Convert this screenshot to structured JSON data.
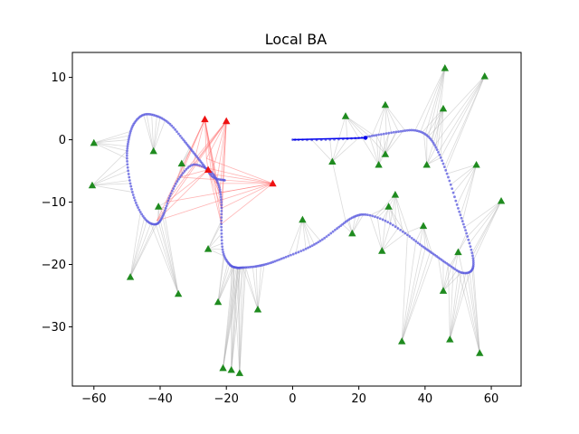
{
  "chart_data": {
    "type": "scatter",
    "title": "Local BA",
    "xlabel": "",
    "ylabel": "",
    "xlim": [
      -66.5,
      69
    ],
    "ylim": [
      -39.5,
      14
    ],
    "xticks": [
      -60,
      -40,
      -20,
      0,
      20,
      40,
      60
    ],
    "yticks": [
      10,
      0,
      -10,
      -20,
      -30
    ],
    "xtick_labels": [
      "−60",
      "−40",
      "−20",
      "0",
      "20",
      "40",
      "60"
    ],
    "ytick_labels": [
      "10",
      "0",
      "−10",
      "−20",
      "−30"
    ],
    "grid": false,
    "colors": {
      "trajectory": "#5555dd",
      "trajectory_end": "#0000ee",
      "landmark_fixed": "#1f8b1f",
      "landmark_local": "#ee1111",
      "observation_fixed": "#b0b0b0",
      "observation_local": "#ff6b6b"
    },
    "trajectory": [
      [
        0,
        0
      ],
      [
        10,
        0
      ],
      [
        20,
        0.3
      ],
      [
        26,
        0.8
      ],
      [
        32,
        1.3
      ],
      [
        37,
        1.5
      ],
      [
        41,
        0.5
      ],
      [
        44,
        -2
      ],
      [
        47,
        -6
      ],
      [
        50,
        -11
      ],
      [
        52.5,
        -15
      ],
      [
        54.5,
        -19
      ],
      [
        54,
        -21
      ],
      [
        51,
        -21.3
      ],
      [
        47,
        -20
      ],
      [
        43,
        -18.5
      ],
      [
        39,
        -17
      ],
      [
        34,
        -15
      ],
      [
        28,
        -13
      ],
      [
        22,
        -12
      ],
      [
        18,
        -12.5
      ],
      [
        14,
        -14
      ],
      [
        9,
        -16
      ],
      [
        4,
        -17.5
      ],
      [
        -2,
        -18.8
      ],
      [
        -7,
        -19.8
      ],
      [
        -11,
        -20.3
      ],
      [
        -15,
        -20.5
      ],
      [
        -17,
        -20.5
      ],
      [
        -19,
        -20
      ],
      [
        -21,
        -18
      ],
      [
        -21.5,
        -14
      ],
      [
        -21.5,
        -10
      ],
      [
        -22.5,
        -7
      ],
      [
        -25,
        -5
      ],
      [
        -30,
        -4
      ],
      [
        -34,
        -6
      ],
      [
        -37,
        -9
      ],
      [
        -39,
        -12
      ],
      [
        -41,
        -13.5
      ],
      [
        -44,
        -13
      ],
      [
        -47,
        -10.5
      ],
      [
        -49,
        -7
      ],
      [
        -50,
        -3
      ],
      [
        -49.5,
        0
      ],
      [
        -48,
        2.5
      ],
      [
        -45,
        4
      ],
      [
        -41,
        3.8
      ],
      [
        -37,
        2.5
      ],
      [
        -33,
        0
      ],
      [
        -30,
        -2
      ],
      [
        -27,
        -4
      ],
      [
        -24,
        -6
      ],
      [
        -20.5,
        -6.5
      ]
    ],
    "keyframe": [
      22,
      0.3
    ],
    "landmarks_fixed": [
      [
        -60,
        -0.5
      ],
      [
        -60.5,
        -7.3
      ],
      [
        -49,
        -22
      ],
      [
        -42,
        -1.8
      ],
      [
        -40.5,
        -10.7
      ],
      [
        -33.5,
        -3.8
      ],
      [
        -34.5,
        -24.7
      ],
      [
        -25.5,
        -17.5
      ],
      [
        -22.5,
        -26
      ],
      [
        -21,
        -36.6
      ],
      [
        -18.5,
        -36.9
      ],
      [
        -16,
        -37.4
      ],
      [
        -10.5,
        -27.2
      ],
      [
        3,
        -12.8
      ],
      [
        12,
        -3.5
      ],
      [
        16,
        3.8
      ],
      [
        18,
        -15
      ],
      [
        26,
        -4
      ],
      [
        27,
        -17.8
      ],
      [
        28,
        -2.3
      ],
      [
        28,
        5.6
      ],
      [
        29,
        -10.7
      ],
      [
        31,
        -8.8
      ],
      [
        33,
        -32.3
      ],
      [
        39.5,
        -13.8
      ],
      [
        40.5,
        -4
      ],
      [
        45.5,
        5
      ],
      [
        45.5,
        -24.2
      ],
      [
        46,
        11.5
      ],
      [
        47.5,
        -32
      ],
      [
        50,
        -18
      ],
      [
        55.5,
        -4
      ],
      [
        56.5,
        -34.2
      ],
      [
        58,
        10.2
      ],
      [
        63,
        -9.8
      ]
    ],
    "landmarks_local": [
      [
        -26.5,
        3.3
      ],
      [
        -20,
        3
      ],
      [
        -25.5,
        -4.8
      ],
      [
        -6,
        -7
      ]
    ],
    "observations_local_from": [
      [
        -26,
        -3
      ],
      [
        -24.5,
        -5.5
      ],
      [
        -23,
        -7
      ],
      [
        -22,
        -8.5
      ],
      [
        -21.5,
        -11
      ],
      [
        -21.5,
        -13.5
      ],
      [
        -30,
        -4
      ],
      [
        -34,
        -6
      ],
      [
        -38,
        -10
      ],
      [
        -41,
        -13
      ]
    ]
  }
}
